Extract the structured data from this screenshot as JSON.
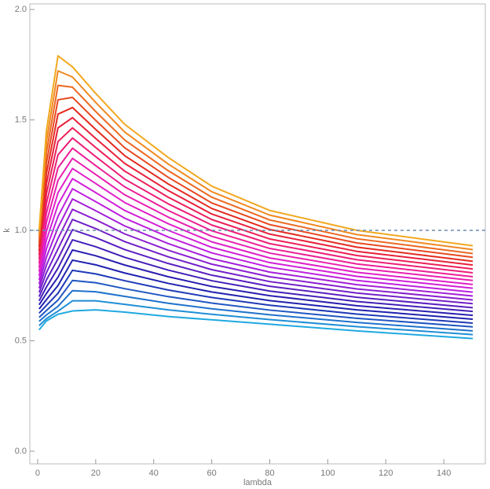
{
  "chart_data": {
    "type": "line",
    "x_label": "lambda",
    "y_label": "k",
    "x": [
      0.5,
      3,
      7,
      12,
      20,
      30,
      45,
      60,
      80,
      110,
      150
    ],
    "series": [
      {
        "color": "#1fa9e0",
        "values": [
          0.55,
          0.59,
          0.62,
          0.635,
          0.64,
          0.63,
          0.61,
          0.595,
          0.575,
          0.545,
          0.51
        ]
      },
      {
        "color": "#1f8ed6",
        "values": [
          0.569,
          0.6,
          0.634,
          0.681,
          0.681,
          0.665,
          0.64,
          0.62,
          0.596,
          0.564,
          0.528
        ]
      },
      {
        "color": "#1f72cc",
        "values": [
          0.588,
          0.617,
          0.656,
          0.727,
          0.722,
          0.701,
          0.67,
          0.645,
          0.618,
          0.583,
          0.545
        ]
      },
      {
        "color": "#1f56c2",
        "values": [
          0.606,
          0.637,
          0.684,
          0.773,
          0.763,
          0.736,
          0.7,
          0.671,
          0.639,
          0.602,
          0.563
        ]
      },
      {
        "color": "#1f3ab8",
        "values": [
          0.625,
          0.66,
          0.715,
          0.819,
          0.803,
          0.772,
          0.73,
          0.696,
          0.661,
          0.621,
          0.58
        ]
      },
      {
        "color": "#1f22ae",
        "values": [
          0.644,
          0.686,
          0.75,
          0.865,
          0.844,
          0.807,
          0.76,
          0.721,
          0.682,
          0.64,
          0.598
        ]
      },
      {
        "color": "#2a1fb0",
        "values": [
          0.663,
          0.714,
          0.788,
          0.911,
          0.885,
          0.843,
          0.79,
          0.746,
          0.704,
          0.659,
          0.615
        ]
      },
      {
        "color": "#421fb8",
        "values": [
          0.681,
          0.743,
          0.829,
          0.957,
          0.926,
          0.878,
          0.82,
          0.772,
          0.725,
          0.678,
          0.633
        ]
      },
      {
        "color": "#5a1fc0",
        "values": [
          0.7,
          0.775,
          0.871,
          1.003,
          0.967,
          0.913,
          0.85,
          0.797,
          0.747,
          0.697,
          0.65
        ]
      },
      {
        "color": "#721fc8",
        "values": [
          0.719,
          0.808,
          0.916,
          1.049,
          1.008,
          0.949,
          0.88,
          0.822,
          0.768,
          0.716,
          0.668
        ]
      },
      {
        "color": "#8a1fd0",
        "values": [
          0.738,
          0.842,
          0.963,
          1.095,
          1.048,
          0.984,
          0.91,
          0.847,
          0.79,
          0.735,
          0.685
        ]
      },
      {
        "color": "#a41fd8",
        "values": [
          0.756,
          0.878,
          1.012,
          1.142,
          1.089,
          1.02,
          0.94,
          0.872,
          0.811,
          0.754,
          0.703
        ]
      },
      {
        "color": "#be1fe0",
        "values": [
          0.775,
          0.916,
          1.063,
          1.188,
          1.13,
          1.055,
          0.97,
          0.898,
          0.833,
          0.773,
          0.72
        ]
      },
      {
        "color": "#d21fd8",
        "values": [
          0.794,
          0.955,
          1.116,
          1.234,
          1.171,
          1.09,
          1.0,
          0.923,
          0.854,
          0.792,
          0.738
        ]
      },
      {
        "color": "#e01fc8",
        "values": [
          0.813,
          0.994,
          1.17,
          1.28,
          1.212,
          1.126,
          1.03,
          0.948,
          0.875,
          0.81,
          0.755
        ]
      },
      {
        "color": "#e81fb0",
        "values": [
          0.831,
          1.035,
          1.226,
          1.326,
          1.253,
          1.161,
          1.06,
          0.973,
          0.897,
          0.829,
          0.773
        ]
      },
      {
        "color": "#ec1f96",
        "values": [
          0.85,
          1.077,
          1.283,
          1.372,
          1.293,
          1.197,
          1.09,
          0.998,
          0.918,
          0.848,
          0.79
        ]
      },
      {
        "color": "#ec1f78",
        "values": [
          0.869,
          1.121,
          1.342,
          1.418,
          1.334,
          1.232,
          1.12,
          1.024,
          0.94,
          0.867,
          0.808
        ]
      },
      {
        "color": "#ec1f58",
        "values": [
          0.888,
          1.165,
          1.402,
          1.464,
          1.375,
          1.268,
          1.15,
          1.049,
          0.961,
          0.886,
          0.825
        ]
      },
      {
        "color": "#e8203a",
        "values": [
          0.906,
          1.21,
          1.464,
          1.51,
          1.416,
          1.303,
          1.18,
          1.074,
          0.983,
          0.905,
          0.843
        ]
      },
      {
        "color": "#e42a1f",
        "values": [
          0.925,
          1.256,
          1.526,
          1.556,
          1.457,
          1.338,
          1.21,
          1.099,
          1.004,
          0.924,
          0.86
        ]
      },
      {
        "color": "#e8481f",
        "values": [
          0.944,
          1.303,
          1.591,
          1.602,
          1.498,
          1.374,
          1.24,
          1.124,
          1.026,
          0.943,
          0.878
        ]
      },
      {
        "color": "#ec681f",
        "values": [
          0.963,
          1.351,
          1.656,
          1.648,
          1.538,
          1.409,
          1.27,
          1.15,
          1.047,
          0.962,
          0.895
        ]
      },
      {
        "color": "#f0881f",
        "values": [
          0.981,
          1.4,
          1.722,
          1.694,
          1.579,
          1.445,
          1.3,
          1.175,
          1.069,
          0.981,
          0.913
        ]
      },
      {
        "color": "#f2a81f",
        "values": [
          1.0,
          1.45,
          1.79,
          1.74,
          1.62,
          1.48,
          1.33,
          1.2,
          1.09,
          1.0,
          0.93
        ]
      }
    ],
    "reference_line": {
      "value": 1,
      "color": "#6a8caf",
      "style": "dashed"
    },
    "xlim": [
      -2.7,
      154.3
    ],
    "ylim": [
      -0.057,
      2.025
    ],
    "xticks": [
      0,
      20,
      40,
      60,
      80,
      100,
      120,
      140
    ],
    "yticks": [
      {
        "value": 0,
        "label": "0.0"
      },
      {
        "value": 0.5,
        "label": "0.5"
      },
      {
        "value": 1,
        "label": "1.0"
      },
      {
        "value": 1.5,
        "label": "1.5"
      },
      {
        "value": 2,
        "label": "2.0"
      }
    ],
    "grid": false
  }
}
